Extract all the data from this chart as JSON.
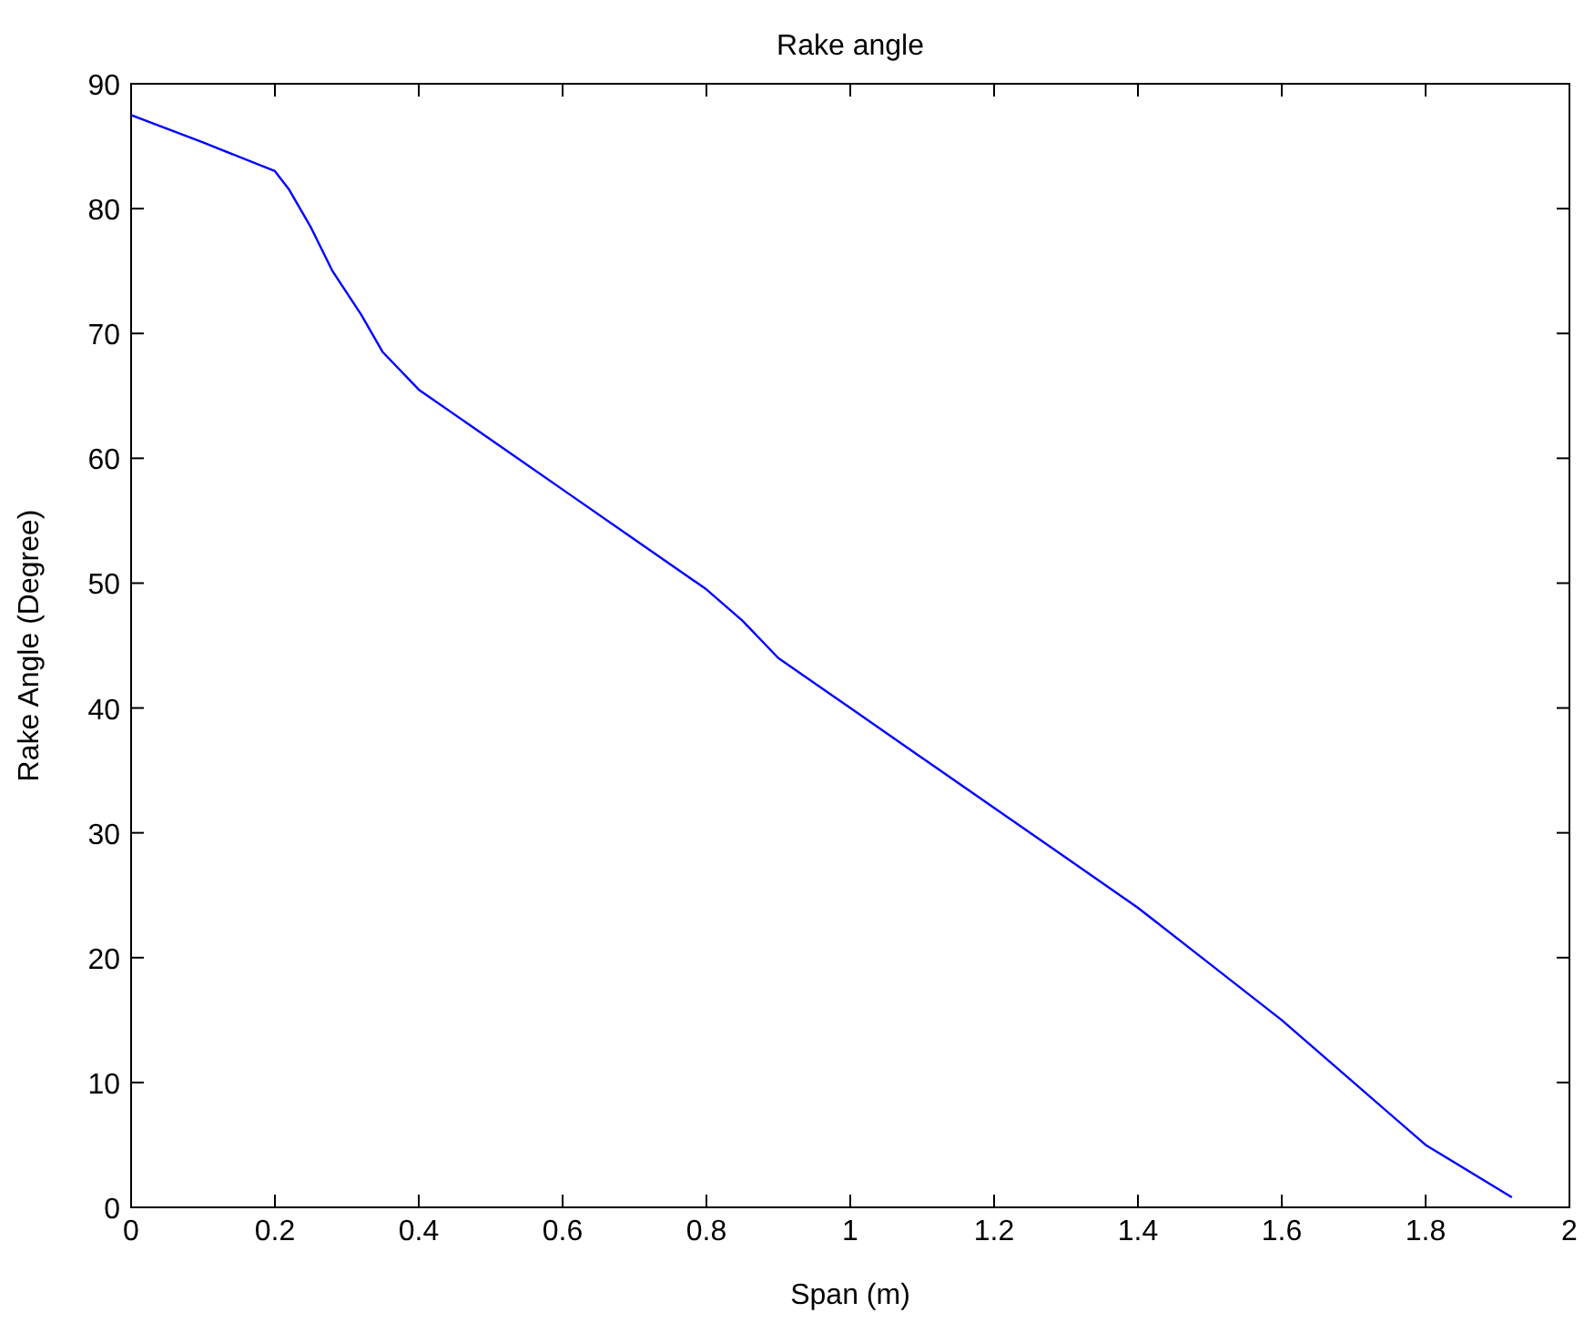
{
  "chart_data": {
    "type": "line",
    "title": "Rake angle",
    "xlabel": "Span (m)",
    "ylabel": "Rake Angle (Degree)",
    "x": [
      0,
      0.1,
      0.2,
      0.22,
      0.25,
      0.28,
      0.32,
      0.35,
      0.4,
      0.5,
      0.6,
      0.7,
      0.8,
      0.85,
      0.9,
      1.0,
      1.1,
      1.2,
      1.3,
      1.4,
      1.5,
      1.6,
      1.7,
      1.8,
      1.92
    ],
    "series": [
      {
        "color": "#0000ff",
        "values": [
          87.5,
          85.3,
          83,
          81.5,
          78.5,
          75,
          71.5,
          68.5,
          65.5,
          61.5,
          57.5,
          53.5,
          49.5,
          47,
          44,
          40,
          36,
          32,
          28,
          24,
          19.5,
          15,
          10,
          5,
          0.8
        ]
      }
    ],
    "xlim": [
      0,
      2
    ],
    "xticks": [
      0,
      0.2,
      0.4,
      0.6,
      0.8,
      1,
      1.2,
      1.4,
      1.6,
      1.8,
      2
    ],
    "ylim": [
      0,
      90
    ],
    "yticks": [
      0,
      10,
      20,
      30,
      40,
      50,
      60,
      70,
      80,
      90
    ]
  }
}
